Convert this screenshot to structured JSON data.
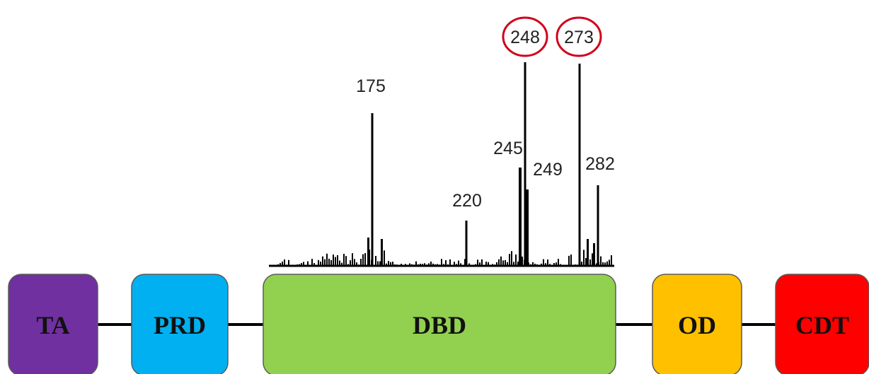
{
  "domains": [
    {
      "label": "TA",
      "color": "#7030a0"
    },
    {
      "label": "PRD",
      "color": "#00b0f0"
    },
    {
      "label": "DBD",
      "color": "#92d050"
    },
    {
      "label": "OD",
      "color": "#ffc000"
    },
    {
      "label": "CDT",
      "color": "#ff0000"
    }
  ],
  "hotspots": [
    {
      "label": "175",
      "circled": false
    },
    {
      "label": "220",
      "circled": false
    },
    {
      "label": "245",
      "circled": false
    },
    {
      "label": "248",
      "circled": true
    },
    {
      "label": "249",
      "circled": false
    },
    {
      "label": "273",
      "circled": true
    },
    {
      "label": "282",
      "circled": false
    }
  ],
  "colors": {
    "connector": "#000000",
    "highlight_circle": "#d0021b",
    "bars": "#000000"
  }
}
